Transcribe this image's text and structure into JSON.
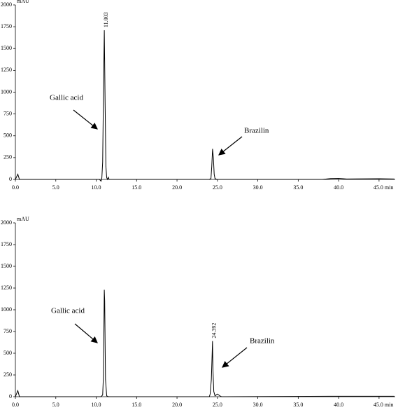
{
  "chart_data": [
    {
      "type": "line",
      "y_label": "mAU",
      "x": [
        0,
        0.3,
        0.5,
        1,
        10.4,
        10.6,
        10.7,
        10.8,
        10.9,
        11.003,
        11.1,
        11.2,
        11.3,
        11.4,
        11.5,
        11.6,
        12,
        24,
        24.2,
        24.3,
        24.4,
        24.5,
        24.6,
        24.7,
        24.9,
        25.5,
        38,
        39,
        40,
        41,
        45,
        46.9
      ],
      "values": [
        0,
        60,
        0,
        0,
        0,
        -20,
        20,
        200,
        1000,
        1710,
        900,
        150,
        20,
        0,
        25,
        0,
        0,
        0,
        10,
        150,
        350,
        250,
        60,
        10,
        0,
        0,
        0,
        10,
        12,
        5,
        8,
        5
      ],
      "color": "#000000",
      "xlim": [
        0,
        47
      ],
      "xticks": [
        {
          "value": 0,
          "label": "0.0"
        },
        {
          "value": 5,
          "label": "5.0"
        },
        {
          "value": 10,
          "label": "10.0"
        },
        {
          "value": 15,
          "label": "15.0"
        },
        {
          "value": 20,
          "label": "20.0"
        },
        {
          "value": 25,
          "label": "25.0"
        },
        {
          "value": 30,
          "label": "30.0"
        },
        {
          "value": 35,
          "label": "35.0"
        },
        {
          "value": 40,
          "label": "40.0"
        },
        {
          "value": 45,
          "label": "45.0 min"
        }
      ],
      "ylim": [
        0,
        2000
      ],
      "yticks": [
        0,
        250,
        500,
        750,
        1000,
        1250,
        1500,
        1750,
        2000
      ],
      "peak_label": {
        "value": 11.003,
        "label": "11.003"
      },
      "annotations": [
        "Gallic acid",
        "Brazilin"
      ]
    },
    {
      "type": "line",
      "y_label": "mAU",
      "x": [
        0,
        0.3,
        0.5,
        1,
        10.6,
        10.8,
        10.9,
        11.0,
        11.05,
        11.15,
        11.3,
        11.5,
        12,
        24.0,
        24.1,
        24.25,
        24.35,
        24.392,
        24.45,
        24.55,
        24.7,
        25.0,
        25.3,
        25.5,
        26,
        39,
        40,
        45,
        46.9
      ],
      "values": [
        0,
        70,
        0,
        0,
        0,
        20,
        250,
        1230,
        1100,
        200,
        10,
        0,
        0,
        0,
        30,
        200,
        500,
        640,
        300,
        60,
        10,
        30,
        10,
        0,
        0,
        5,
        5,
        5,
        5
      ],
      "color": "#000000",
      "xlim": [
        0,
        47
      ],
      "xticks": [
        {
          "value": 0,
          "label": "0.0"
        },
        {
          "value": 5,
          "label": "5.0"
        },
        {
          "value": 10,
          "label": "10.0"
        },
        {
          "value": 15,
          "label": "15.0"
        },
        {
          "value": 20,
          "label": "20.0"
        },
        {
          "value": 25,
          "label": "25.0"
        },
        {
          "value": 30,
          "label": "30.0"
        },
        {
          "value": 35,
          "label": "35.0"
        },
        {
          "value": 40,
          "label": "40.0"
        },
        {
          "value": 45,
          "label": "45.0 min"
        }
      ],
      "ylim": [
        0,
        2000
      ],
      "yticks": [
        0,
        250,
        500,
        750,
        1000,
        1250,
        1500,
        1750,
        2000
      ],
      "peak_label": {
        "value": 24.392,
        "label": "24.392"
      },
      "annotations": [
        "Gallic acid",
        "Brazilin"
      ]
    }
  ]
}
